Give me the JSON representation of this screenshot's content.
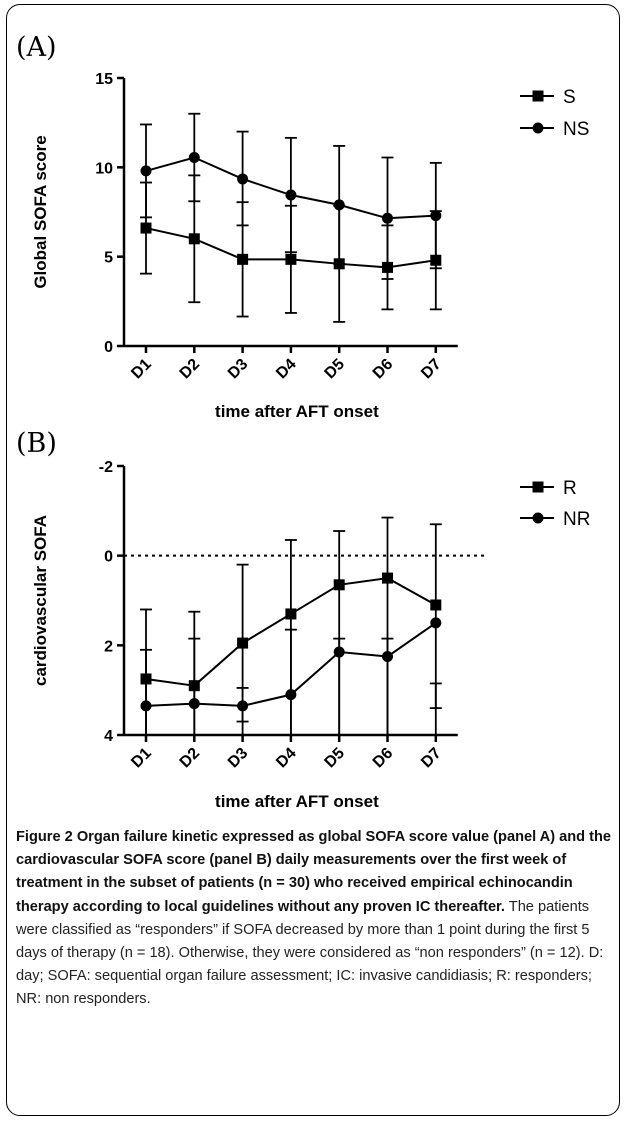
{
  "chart_data": [
    {
      "type": "line",
      "panel_label": "(A)",
      "ylabel": "Global SOFA score",
      "xlabel": "time after AFT onset",
      "categories": [
        "D1",
        "D2",
        "D3",
        "D4",
        "D5",
        "D6",
        "D7"
      ],
      "ylim": [
        0,
        15
      ],
      "yticks": [
        0,
        5,
        10,
        15
      ],
      "y_inverted": false,
      "reference_line": null,
      "legend_position": "top-right",
      "series": [
        {
          "name": "S",
          "marker": "square",
          "values": [
            6.6,
            6.0,
            4.85,
            4.85,
            4.6,
            4.4,
            4.8
          ],
          "error_low": [
            4.05,
            2.45,
            1.65,
            1.85,
            1.35,
            2.05,
            2.05
          ],
          "error_high": [
            9.15,
            9.55,
            8.05,
            7.85,
            7.85,
            6.75,
            7.55
          ]
        },
        {
          "name": "NS",
          "marker": "circle",
          "values": [
            9.8,
            10.55,
            9.35,
            8.45,
            7.9,
            7.15,
            7.3
          ],
          "error_low": [
            7.2,
            8.1,
            6.75,
            5.25,
            4.6,
            3.75,
            4.35
          ],
          "error_high": [
            12.4,
            13.0,
            12.0,
            11.65,
            11.2,
            10.55,
            10.25
          ]
        }
      ]
    },
    {
      "type": "line",
      "panel_label": "(B)",
      "ylabel": "cardiovascular SOFA",
      "xlabel": "time after AFT onset",
      "categories": [
        "D1",
        "D2",
        "D3",
        "D4",
        "D5",
        "D6",
        "D7"
      ],
      "ylim": [
        4,
        -2
      ],
      "yticks": [
        -2,
        0,
        2,
        4
      ],
      "y_inverted": true,
      "reference_line": 0,
      "legend_position": "top-right",
      "series": [
        {
          "name": "R",
          "marker": "square",
          "values": [
            2.75,
            2.9,
            1.95,
            1.3,
            0.65,
            0.5,
            1.1
          ],
          "error_low": [
            4.0,
            4.0,
            3.7,
            4.0,
            4.0,
            4.0,
            4.0
          ],
          "error_high": [
            1.2,
            1.25,
            0.2,
            -0.35,
            -0.55,
            -0.85,
            -0.7
          ]
        },
        {
          "name": "NR",
          "marker": "circle",
          "values": [
            3.35,
            3.3,
            3.35,
            3.1,
            2.15,
            2.25,
            1.5
          ],
          "error_low": [
            4.0,
            4.0,
            4.0,
            4.0,
            4.0,
            4.0,
            3.4
          ],
          "error_high": [
            2.1,
            1.85,
            2.95,
            1.65,
            1.85,
            1.85,
            2.85
          ]
        }
      ]
    }
  ],
  "caption": {
    "bold": "Figure 2 Organ failure kinetic expressed as global SOFA score value (panel A) and the cardiovascular SOFA score (panel B) daily measurements over the first week of treatment in the subset of patients (n = 30) who received empirical echinocandin therapy according to local guidelines without any proven IC thereafter.",
    "normal": " The patients were classified as “responders” if SOFA decreased by more than 1 point during the first 5 days of therapy (n = 18). Otherwise, they were considered as “non responders” (n = 12). D: day; SOFA: sequential organ failure assessment; IC: invasive candidiasis; R: responders; NR: non responders."
  }
}
